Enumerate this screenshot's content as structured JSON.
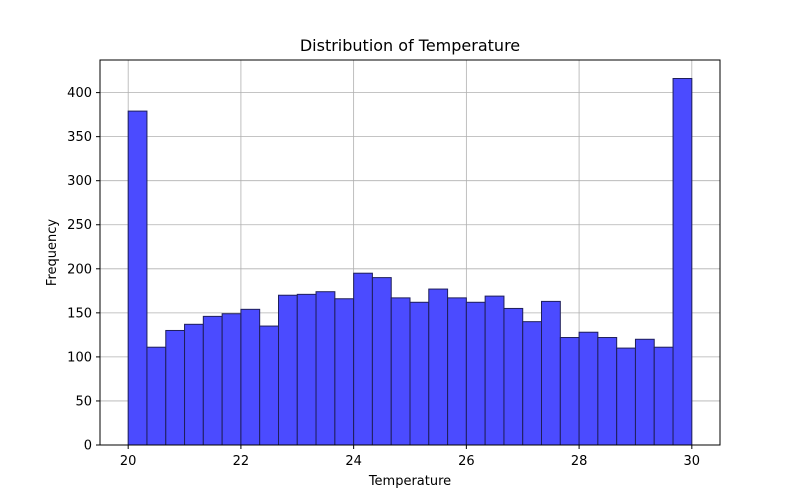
{
  "chart_data": {
    "type": "bar",
    "title": "Distribution of Temperature",
    "xlabel": "Temperature",
    "ylabel": "Frequency",
    "xlim": [
      19.5,
      30.5
    ],
    "ylim": [
      0,
      437
    ],
    "xticks": [
      "20",
      "22",
      "24",
      "26",
      "28",
      "30"
    ],
    "xtick_values": [
      20,
      22,
      24,
      26,
      28,
      30
    ],
    "yticks": [
      "0",
      "50",
      "100",
      "150",
      "200",
      "250",
      "300",
      "350",
      "400"
    ],
    "ytick_values": [
      0,
      50,
      100,
      150,
      200,
      250,
      300,
      350,
      400
    ],
    "grid": true,
    "bin_edges": [
      20.0,
      20.333,
      20.667,
      21.0,
      21.333,
      21.667,
      22.0,
      22.333,
      22.667,
      23.0,
      23.333,
      23.667,
      24.0,
      24.333,
      24.667,
      25.0,
      25.333,
      25.667,
      26.0,
      26.333,
      26.667,
      27.0,
      27.333,
      27.667,
      28.0,
      28.333,
      28.667,
      29.0,
      29.333,
      29.667,
      30.0
    ],
    "values": [
      379,
      111,
      130,
      137,
      146,
      149,
      154,
      135,
      170,
      171,
      174,
      166,
      195,
      190,
      167,
      162,
      177,
      167,
      162,
      169,
      155,
      140,
      163,
      122,
      128,
      122,
      110,
      120,
      111,
      416
    ],
    "bar_color": "#4b4bff",
    "bar_edge_color": "#1f1f5a",
    "grid_color": "#b0b0b0"
  }
}
